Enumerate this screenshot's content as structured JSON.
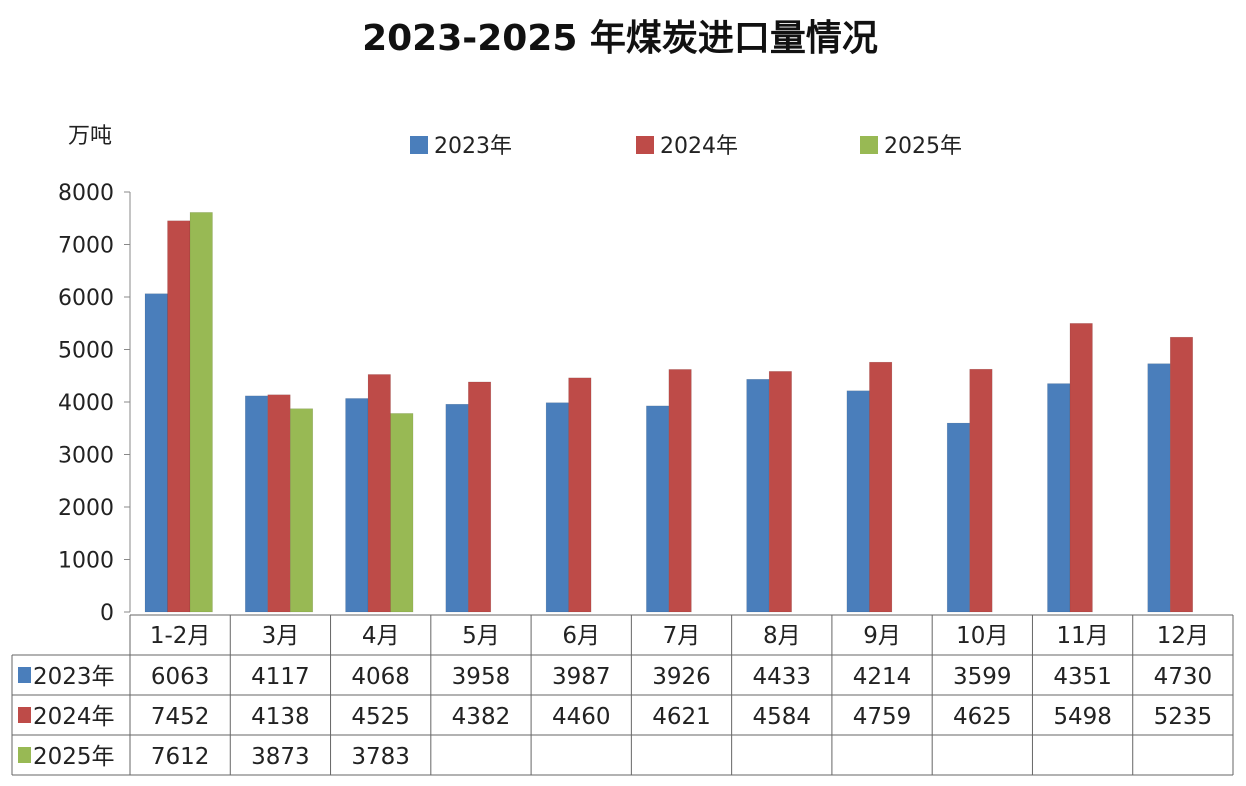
{
  "chart_data": {
    "type": "bar",
    "title": "2023-2025 年煤炭进口量情况",
    "ylabel": "万吨",
    "xlabel": "",
    "ylim": [
      0,
      8000
    ],
    "yticks": [
      0,
      1000,
      2000,
      3000,
      4000,
      5000,
      6000,
      7000,
      8000
    ],
    "grid": false,
    "legend": "top",
    "data_table": true,
    "categories": [
      "1-2月",
      "3月",
      "4月",
      "5月",
      "6月",
      "7月",
      "8月",
      "9月",
      "10月",
      "11月",
      "12月"
    ],
    "series": [
      {
        "name": "2023年",
        "color": "#4a7ebb",
        "values": [
          6063,
          4117,
          4068,
          3958,
          3987,
          3926,
          4433,
          4214,
          3599,
          4351,
          4730
        ]
      },
      {
        "name": "2024年",
        "color": "#be4b48",
        "values": [
          7452,
          4138,
          4525,
          4382,
          4460,
          4621,
          4584,
          4759,
          4625,
          5498,
          5235
        ]
      },
      {
        "name": "2025年",
        "color": "#98b954",
        "values": [
          7612,
          3873,
          3783,
          null,
          null,
          null,
          null,
          null,
          null,
          null,
          null
        ]
      }
    ]
  }
}
